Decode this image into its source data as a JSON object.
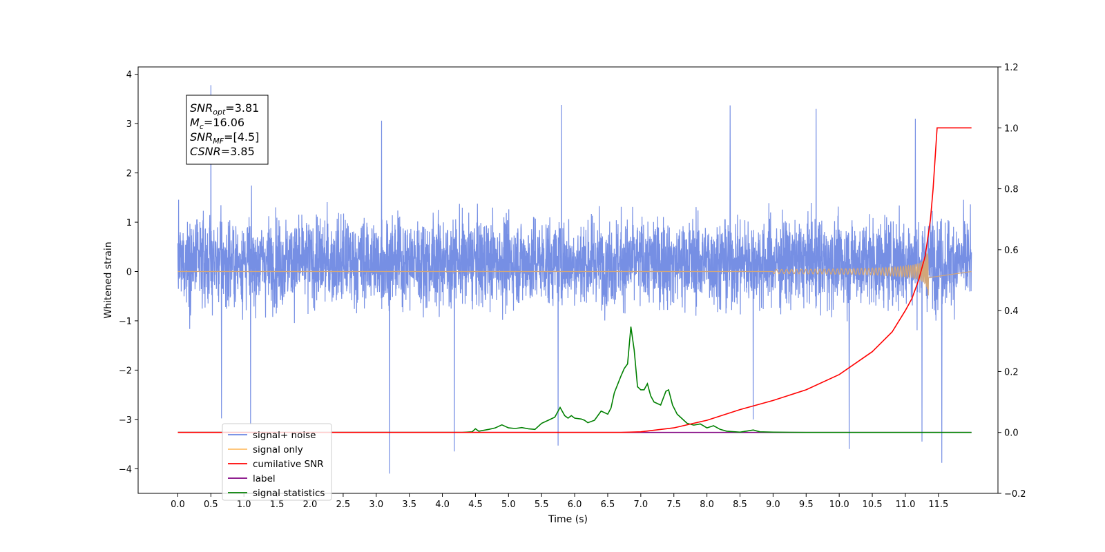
{
  "chart_data": {
    "type": "line",
    "xlabel": "Time (s)",
    "ylabel": "Whitened strain",
    "xlim": [
      -0.6,
      12.4
    ],
    "ylim": [
      -4.5,
      4.15
    ],
    "y2lim": [
      -0.2,
      1.2
    ],
    "x_ticks": [
      "0.0",
      "0.5",
      "1.0",
      "1.5",
      "2.0",
      "2.5",
      "3.0",
      "3.5",
      "4.0",
      "4.5",
      "5.0",
      "5.5",
      "6.0",
      "6.5",
      "7.0",
      "7.5",
      "8.0",
      "8.5",
      "9.0",
      "9.5",
      "10.0",
      "10.5",
      "11.0",
      "11.5"
    ],
    "y_ticks": [
      "4",
      "3",
      "2",
      "1",
      "0",
      "−1",
      "−2",
      "−3",
      "−4"
    ],
    "y2_ticks": [
      "1.2",
      "1.0",
      "0.8",
      "0.6",
      "0.4",
      "0.2",
      "0.0",
      "−0.2"
    ],
    "annotation": {
      "lines": [
        {
          "main": "SNR",
          "sub": "opt",
          "value": "=3.81"
        },
        {
          "main": "M",
          "sub": "c",
          "value": "=16.06"
        },
        {
          "main": "SNR",
          "sub": "MF",
          "value": "=[4.5]"
        },
        {
          "main": "CSNR",
          "sub": "",
          "value": "=3.85"
        }
      ]
    },
    "legend": {
      "placement": "lower-left",
      "entries": [
        {
          "label": "signal+ noise",
          "color": "#6a86e2"
        },
        {
          "label": "signal only",
          "color": "#ffbf69"
        },
        {
          "label": "cumilative SNR",
          "color": "#ff0000"
        },
        {
          "label": "label",
          "color": "#800080"
        },
        {
          "label": "signal statistics",
          "color": "#008000"
        }
      ]
    },
    "series": [
      {
        "name": "signal+ noise",
        "axis": "left",
        "color": "#6a86e2",
        "x_range": [
          0.0,
          12.0
        ],
        "y_range": [
          -4.1,
          3.78
        ],
        "typical_band": [
          -1.8,
          2.2
        ],
        "spikes": [
          {
            "x": 0.5,
            "y": 3.78
          },
          {
            "x": 0.66,
            "y": -2.98
          },
          {
            "x": 1.1,
            "y": -3.1
          },
          {
            "x": 3.2,
            "y": -4.1
          },
          {
            "x": 3.08,
            "y": 3.06
          },
          {
            "x": 4.18,
            "y": -3.65
          },
          {
            "x": 5.75,
            "y": -3.53
          },
          {
            "x": 5.8,
            "y": 3.38
          },
          {
            "x": 8.35,
            "y": 3.37
          },
          {
            "x": 8.7,
            "y": -3.0
          },
          {
            "x": 9.65,
            "y": 3.3
          },
          {
            "x": 10.15,
            "y": -3.6
          },
          {
            "x": 11.25,
            "y": -3.45
          },
          {
            "x": 11.55,
            "y": -3.88
          },
          {
            "x": 11.15,
            "y": 3.1
          }
        ]
      },
      {
        "name": "signal only",
        "axis": "left",
        "color": "#d2a679",
        "x_range": [
          0.0,
          11.35
        ],
        "peak_amplitude": 0.65,
        "end_value": 0.0
      },
      {
        "name": "cumilative SNR",
        "axis": "right",
        "color": "#ff0000",
        "points": [
          [
            0.0,
            0.0
          ],
          [
            6.7,
            0.0
          ],
          [
            7.0,
            0.002
          ],
          [
            7.5,
            0.015
          ],
          [
            8.0,
            0.04
          ],
          [
            8.5,
            0.075
          ],
          [
            9.0,
            0.105
          ],
          [
            9.5,
            0.14
          ],
          [
            10.0,
            0.19
          ],
          [
            10.5,
            0.265
          ],
          [
            10.8,
            0.33
          ],
          [
            11.0,
            0.4
          ],
          [
            11.1,
            0.44
          ],
          [
            11.2,
            0.5
          ],
          [
            11.3,
            0.58
          ],
          [
            11.38,
            0.7
          ],
          [
            11.42,
            0.8
          ],
          [
            11.45,
            0.9
          ],
          [
            11.48,
            1.0
          ],
          [
            11.5,
            1.0
          ],
          [
            12.0,
            1.0
          ]
        ]
      },
      {
        "name": "label",
        "axis": "right",
        "color": "#800080",
        "points": [
          [
            0.0,
            0.0
          ],
          [
            12.0,
            0.0
          ]
        ]
      },
      {
        "name": "signal statistics",
        "axis": "right",
        "color": "#008000",
        "points": [
          [
            0.0,
            0.0
          ],
          [
            4.3,
            0.0
          ],
          [
            4.45,
            0.002
          ],
          [
            4.5,
            0.012
          ],
          [
            4.55,
            0.004
          ],
          [
            4.7,
            0.01
          ],
          [
            4.8,
            0.015
          ],
          [
            4.9,
            0.025
          ],
          [
            5.0,
            0.015
          ],
          [
            5.1,
            0.013
          ],
          [
            5.2,
            0.016
          ],
          [
            5.3,
            0.012
          ],
          [
            5.4,
            0.01
          ],
          [
            5.5,
            0.03
          ],
          [
            5.6,
            0.04
          ],
          [
            5.7,
            0.05
          ],
          [
            5.78,
            0.082
          ],
          [
            5.85,
            0.055
          ],
          [
            5.9,
            0.047
          ],
          [
            5.95,
            0.055
          ],
          [
            6.0,
            0.047
          ],
          [
            6.1,
            0.044
          ],
          [
            6.15,
            0.04
          ],
          [
            6.2,
            0.032
          ],
          [
            6.3,
            0.04
          ],
          [
            6.35,
            0.055
          ],
          [
            6.4,
            0.07
          ],
          [
            6.5,
            0.06
          ],
          [
            6.55,
            0.08
          ],
          [
            6.6,
            0.13
          ],
          [
            6.7,
            0.185
          ],
          [
            6.75,
            0.21
          ],
          [
            6.8,
            0.225
          ],
          [
            6.85,
            0.347
          ],
          [
            6.9,
            0.27
          ],
          [
            6.95,
            0.15
          ],
          [
            7.0,
            0.14
          ],
          [
            7.05,
            0.14
          ],
          [
            7.1,
            0.16
          ],
          [
            7.15,
            0.12
          ],
          [
            7.2,
            0.1
          ],
          [
            7.3,
            0.09
          ],
          [
            7.38,
            0.135
          ],
          [
            7.42,
            0.14
          ],
          [
            7.48,
            0.09
          ],
          [
            7.55,
            0.06
          ],
          [
            7.6,
            0.05
          ],
          [
            7.7,
            0.03
          ],
          [
            7.8,
            0.024
          ],
          [
            7.9,
            0.028
          ],
          [
            8.0,
            0.015
          ],
          [
            8.1,
            0.022
          ],
          [
            8.2,
            0.01
          ],
          [
            8.3,
            0.004
          ],
          [
            8.5,
            0.001
          ],
          [
            8.7,
            0.008
          ],
          [
            8.8,
            0.002
          ],
          [
            9.0,
            0.001
          ],
          [
            9.5,
            0.0
          ],
          [
            12.0,
            0.0
          ]
        ]
      }
    ]
  }
}
